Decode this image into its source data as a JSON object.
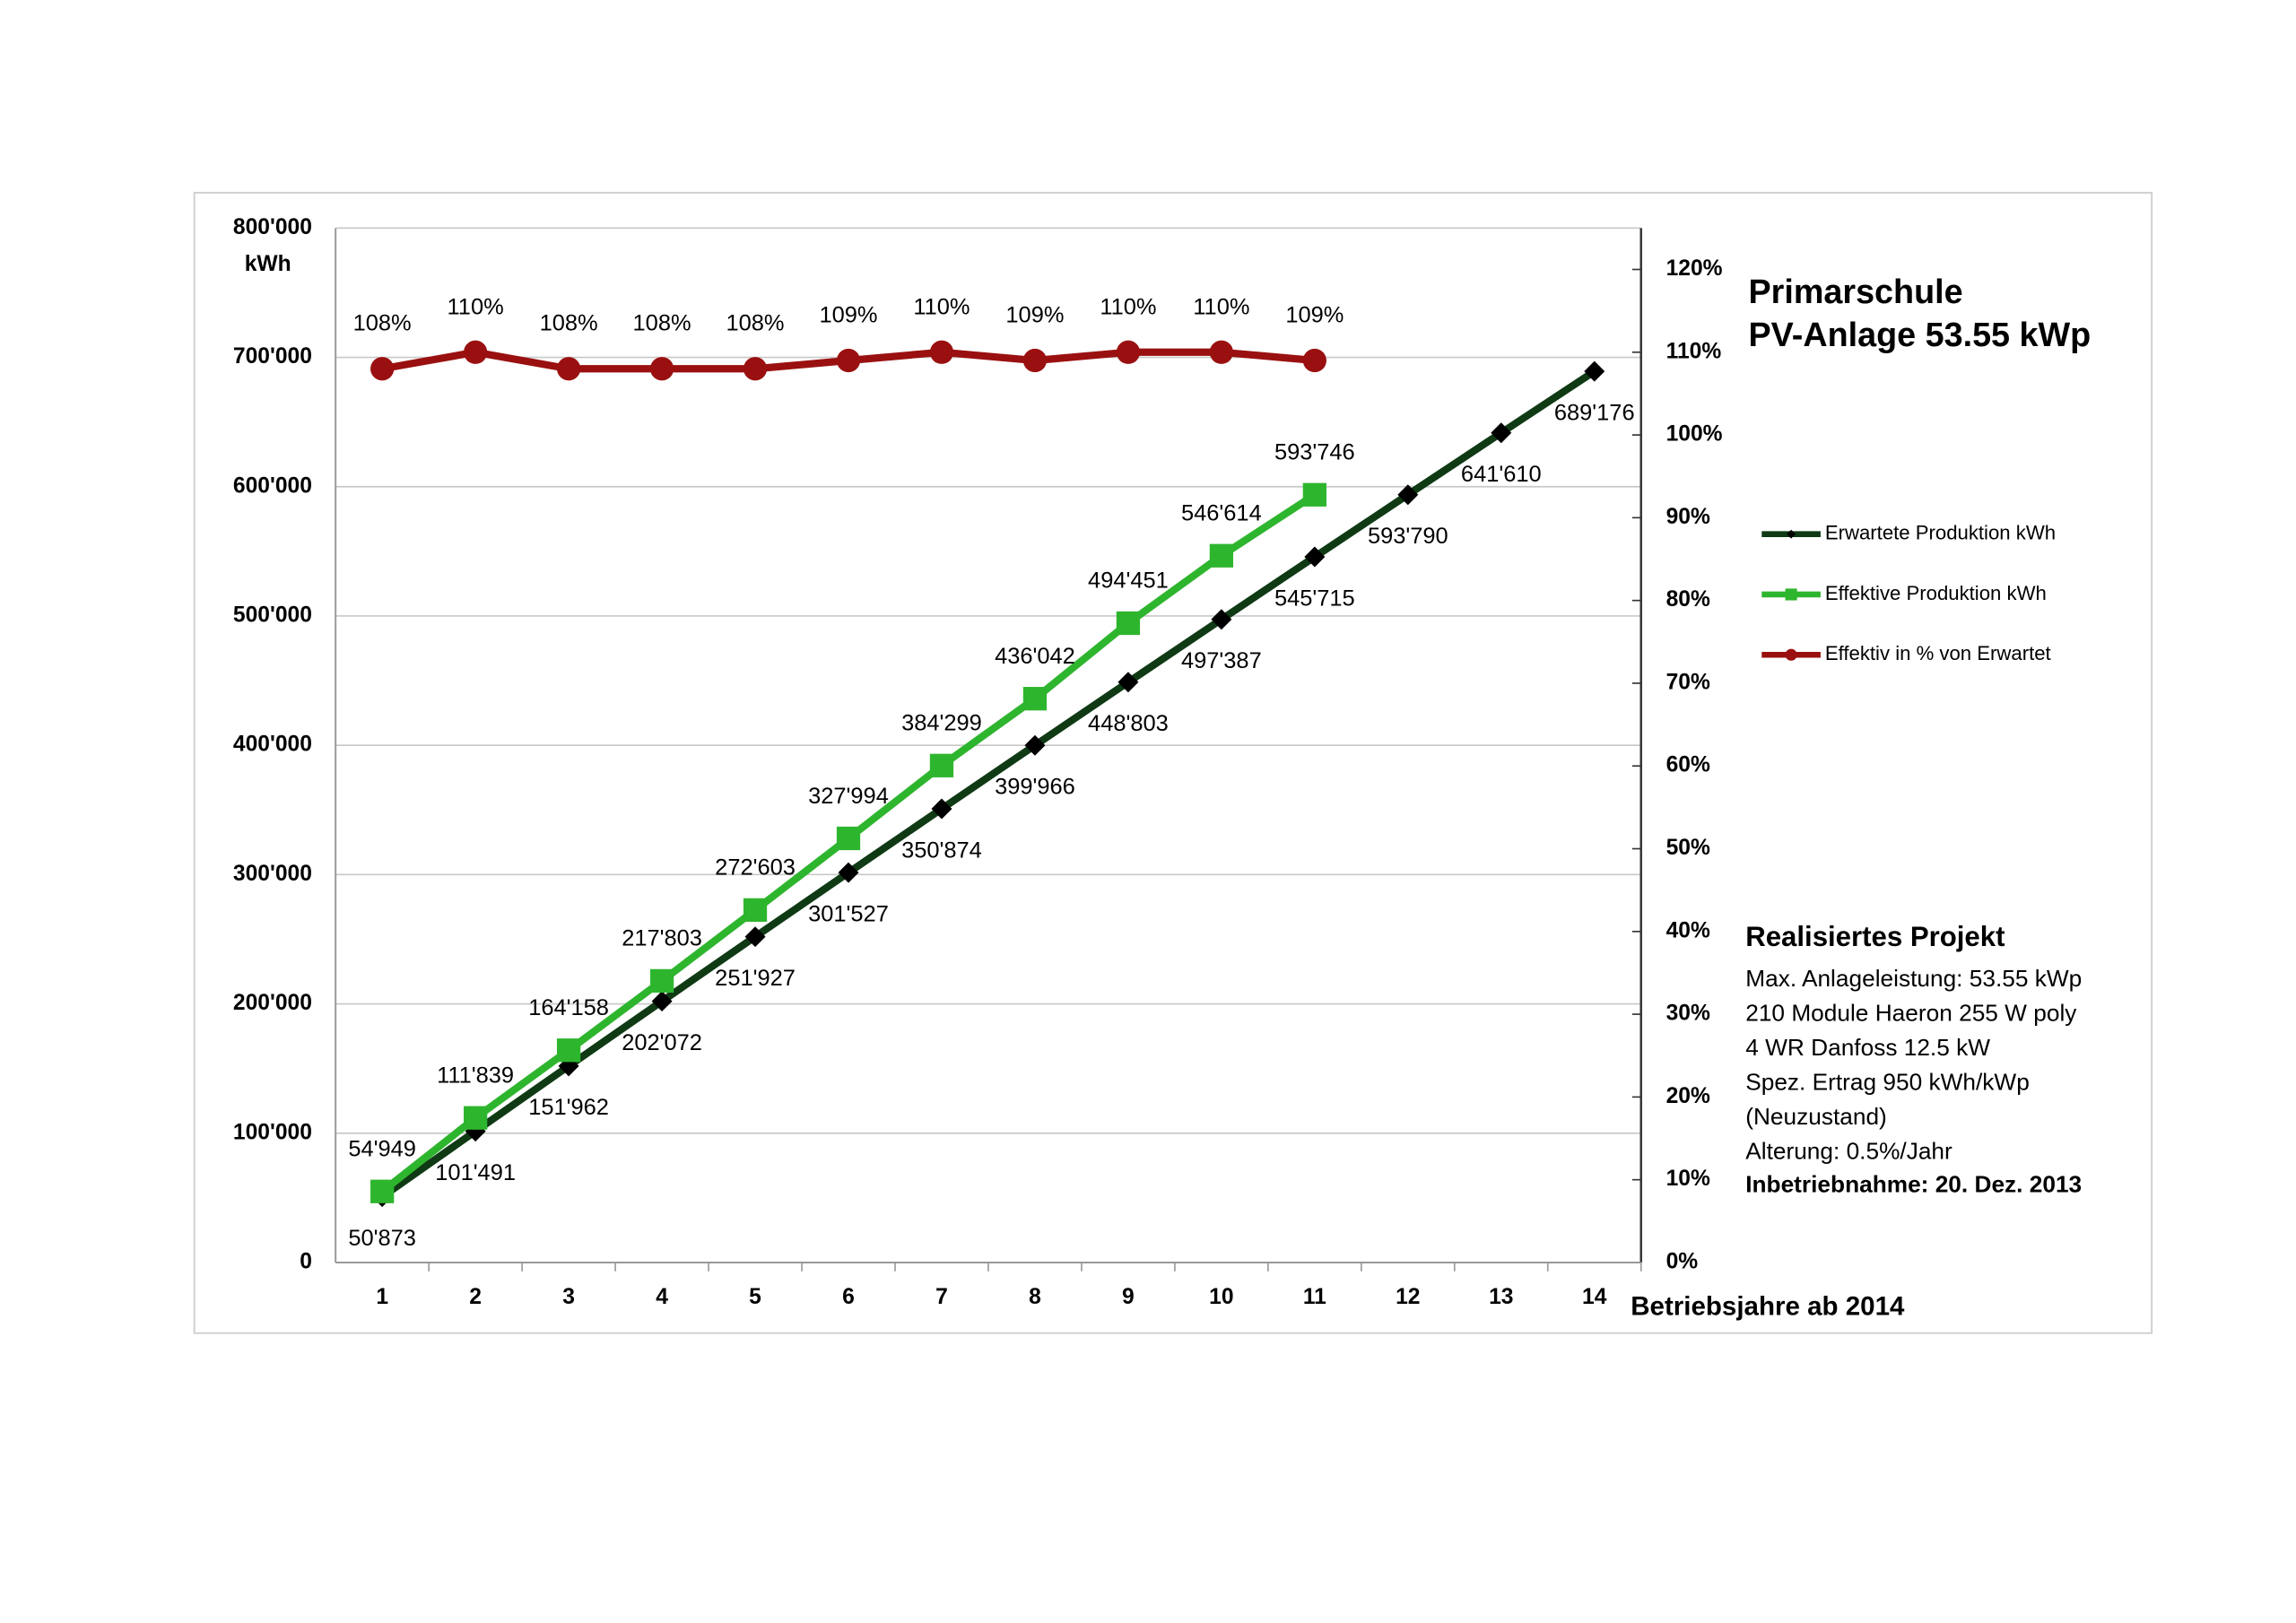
{
  "chart_data": {
    "type": "line",
    "title": [
      "Primarschule",
      "PV-Anlage 53.55 kWp"
    ],
    "x_label": "Betriebsjahre ab 2014",
    "y_label": "kWh",
    "categories": [
      1,
      2,
      3,
      4,
      5,
      6,
      7,
      8,
      9,
      10,
      11,
      12,
      13,
      14
    ],
    "ylim": [
      0,
      800000
    ],
    "yticks": [
      0,
      {
        "value": 100000,
        "label": "100'000"
      },
      {
        "value": 200000,
        "label": "200'000"
      },
      {
        "value": 300000,
        "label": "300'000"
      },
      {
        "value": 400000,
        "label": "400'000"
      },
      {
        "value": 500000,
        "label": "500'000"
      },
      {
        "value": 600000,
        "label": "600'000"
      },
      {
        "value": 700000,
        "label": "700'000"
      },
      {
        "value": 800000,
        "label": "800'000"
      }
    ],
    "y2lim": [
      0,
      125
    ],
    "y2ticks": [
      {
        "value": 0,
        "label": "0%"
      },
      {
        "value": 10,
        "label": "10%"
      },
      {
        "value": 20,
        "label": "20%"
      },
      {
        "value": 30,
        "label": "30%"
      },
      {
        "value": 40,
        "label": "40%"
      },
      {
        "value": 50,
        "label": "50%"
      },
      {
        "value": 60,
        "label": "60%"
      },
      {
        "value": 70,
        "label": "70%"
      },
      {
        "value": 80,
        "label": "80%"
      },
      {
        "value": 90,
        "label": "90%"
      },
      {
        "value": 100,
        "label": "100%"
      },
      {
        "value": 110,
        "label": "110%"
      },
      {
        "value": 120,
        "label": "120%"
      }
    ],
    "grid": true,
    "legend": "right",
    "series": [
      {
        "name": "Erwartete Produktion kWh",
        "color": "#0f3a14",
        "marker": "diamond",
        "values": [
          50873,
          101491,
          151962,
          202072,
          251927,
          301527,
          350874,
          399966,
          448803,
          497387,
          545715,
          593790,
          641610,
          689176
        ],
        "value_labels": [
          "50'873",
          "101'491",
          "151'962",
          "202'072",
          "251'927",
          "301'527",
          "350'874",
          "399'966",
          "448'803",
          "497'387",
          "545'715",
          "593'790",
          "641'610",
          "689'176"
        ]
      },
      {
        "name": "Effektive Produktion kWh",
        "color": "#2eb52e",
        "marker": "square",
        "values": [
          54949,
          111839,
          164158,
          217803,
          272603,
          327994,
          384299,
          436042,
          494451,
          546614,
          593746,
          null,
          null,
          null
        ],
        "value_labels": [
          "54'949",
          "111'839",
          "164'158",
          "217'803",
          "272'603",
          "327'994",
          "384'299",
          "436'042",
          "494'451",
          "546'614",
          "593'746",
          null,
          null,
          null
        ]
      },
      {
        "name": "Effektiv in % von Erwartet",
        "color": "#9a1010",
        "marker": "circle",
        "axis": "y2",
        "values": [
          108,
          110,
          108,
          108,
          108,
          109,
          110,
          109,
          110,
          110,
          109,
          null,
          null,
          null
        ],
        "value_labels": [
          "108%",
          "110%",
          "108%",
          "108%",
          "108%",
          "109%",
          "110%",
          "109%",
          "110%",
          "110%",
          "109%",
          null,
          null,
          null
        ]
      }
    ],
    "annotation": {
      "heading": "Realisiertes Projekt",
      "lines": [
        "Max. Anlageleistung: 53.55 kWp",
        "210 Module Haeron 255 W poly",
        "4 WR Danfoss 12.5 kW",
        "Spez. Ertrag 950 kWh/kWp",
        "(Neuzustand)",
        "Alterung: 0.5%/Jahr"
      ],
      "footer": "Inbetriebnahme: 20. Dez. 2013"
    }
  }
}
